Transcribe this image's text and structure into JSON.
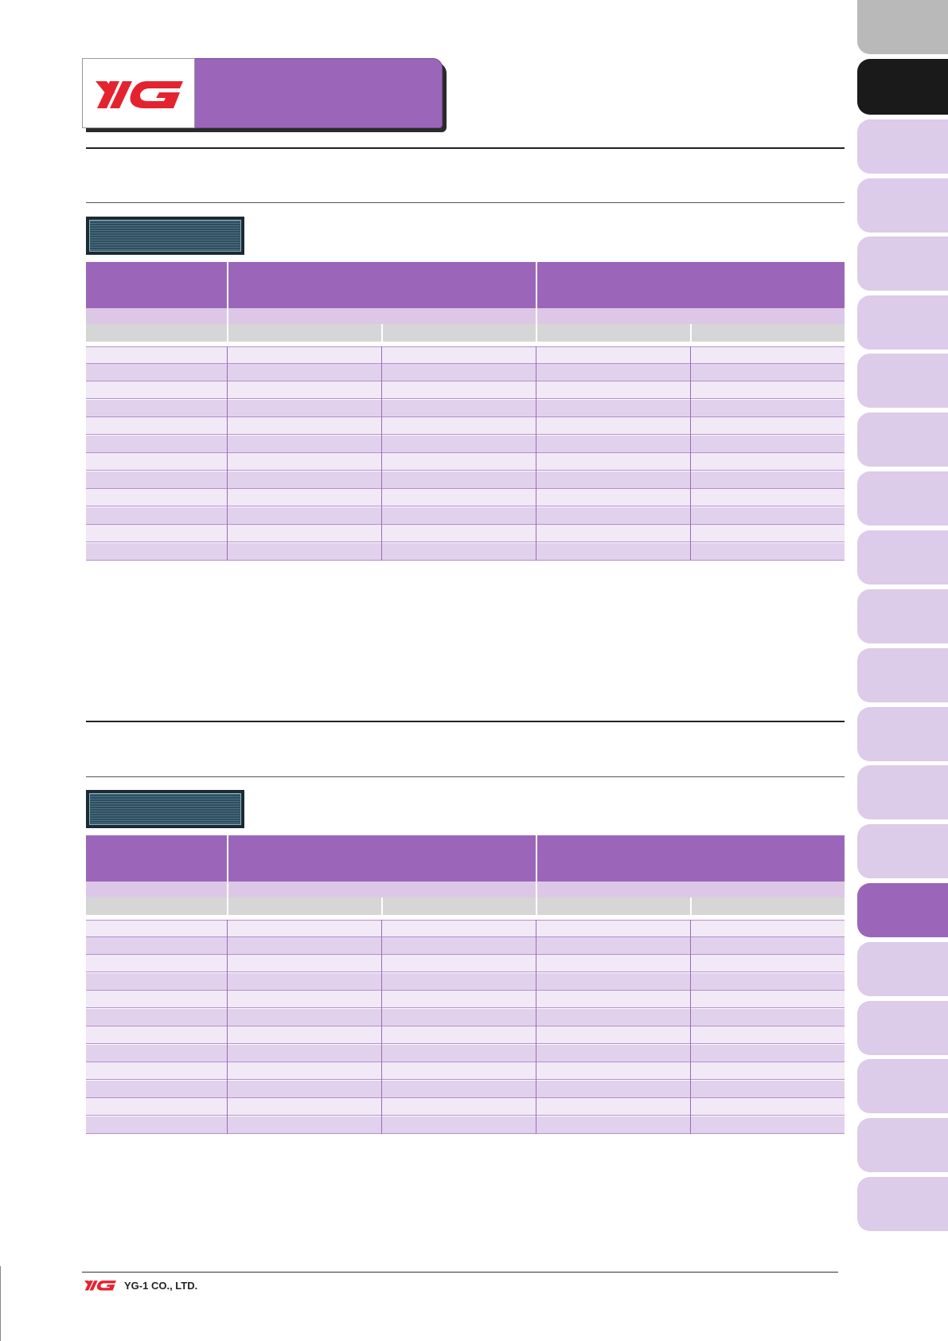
{
  "header": {
    "logo_text": "YG",
    "colors": {
      "brand_purple": "#9b66b9",
      "logo_red": "#e4232f"
    }
  },
  "sections": [
    {
      "name": "section-1",
      "row_count": 12
    },
    {
      "name": "section-2",
      "row_count": 12
    }
  ],
  "side_tabs": {
    "count": 20,
    "active_index": 15
  },
  "footer": {
    "company": "YG-1 CO., LTD."
  }
}
